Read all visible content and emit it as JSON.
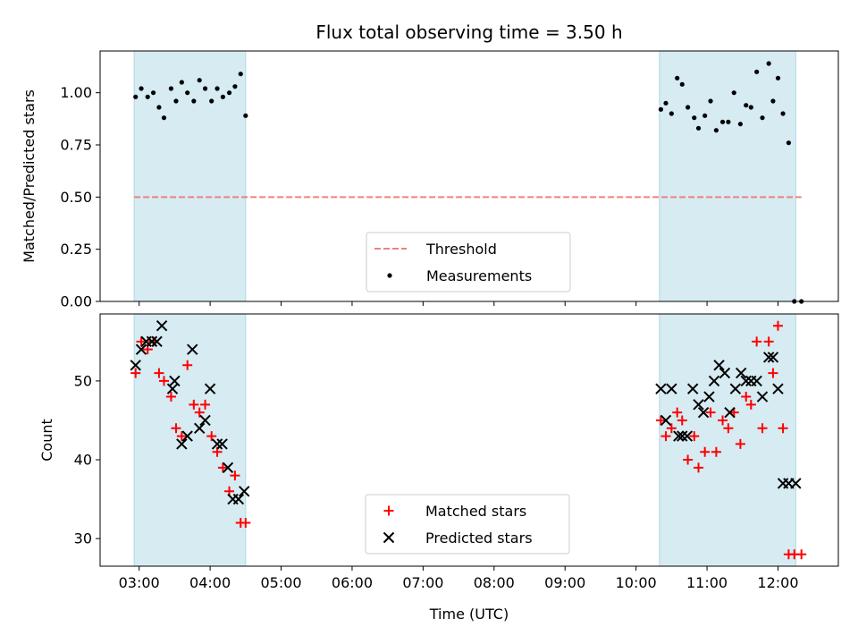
{
  "chart_data": {
    "title": "Flux total observing time = 3.50 h",
    "xlabel": "Time (UTC)",
    "xticks": [
      "03:00",
      "04:00",
      "05:00",
      "06:00",
      "07:00",
      "08:00",
      "09:00",
      "10:00",
      "11:00",
      "12:00"
    ],
    "xlim_hours": [
      2.45,
      12.85
    ],
    "shaded_intervals_hours": [
      [
        2.93,
        4.5
      ],
      [
        10.33,
        12.25
      ]
    ],
    "shade_color": "#add8e6",
    "panels": [
      {
        "type": "scatter",
        "ylabel": "Matched/Predicted stars",
        "ylim": [
          0,
          1.2
        ],
        "yticks": [
          "0.00",
          "0.25",
          "0.50",
          "0.75",
          "1.00"
        ],
        "threshold": {
          "name": "Threshold",
          "value": 0.5,
          "color": "#f08080"
        },
        "legend": [
          "Threshold",
          "Measurements"
        ],
        "series": [
          {
            "name": "Measurements",
            "marker": "dot",
            "color": "#000000",
            "x": [
              2.95,
              3.03,
              3.12,
              3.2,
              3.28,
              3.35,
              3.45,
              3.52,
              3.6,
              3.68,
              3.77,
              3.85,
              3.93,
              4.02,
              4.1,
              4.18,
              4.27,
              4.35,
              4.43,
              4.5,
              10.35,
              10.42,
              10.5,
              10.58,
              10.65,
              10.73,
              10.82,
              10.88,
              10.97,
              11.05,
              11.13,
              11.22,
              11.3,
              11.38,
              11.47,
              11.55,
              11.62,
              11.7,
              11.78,
              11.87,
              11.93,
              12.0,
              12.07,
              12.15,
              12.23,
              12.33
            ],
            "y": [
              0.98,
              1.02,
              0.98,
              1.0,
              0.93,
              0.88,
              1.02,
              0.96,
              1.05,
              1.0,
              0.96,
              1.06,
              1.02,
              0.96,
              1.02,
              0.98,
              1.0,
              1.03,
              1.09,
              0.89,
              0.92,
              0.95,
              0.9,
              1.07,
              1.04,
              0.93,
              0.88,
              0.83,
              0.89,
              0.96,
              0.82,
              0.86,
              0.86,
              1.0,
              0.85,
              0.94,
              0.93,
              1.1,
              0.88,
              1.14,
              0.96,
              1.07,
              0.9,
              0.76,
              0.0,
              0.0
            ]
          }
        ]
      },
      {
        "type": "scatter",
        "ylabel": "Count",
        "ylim": [
          26.5,
          58.5
        ],
        "yticks": [
          "30",
          "40",
          "50"
        ],
        "legend": [
          "Matched stars",
          "Predicted stars"
        ],
        "series": [
          {
            "name": "Matched stars",
            "marker": "plus",
            "color": "#ff0000",
            "x": [
              2.95,
              3.03,
              3.12,
              3.2,
              3.28,
              3.35,
              3.45,
              3.52,
              3.6,
              3.68,
              3.77,
              3.85,
              3.93,
              4.02,
              4.1,
              4.18,
              4.27,
              4.35,
              4.43,
              4.5,
              10.35,
              10.42,
              10.5,
              10.58,
              10.65,
              10.73,
              10.82,
              10.88,
              10.97,
              11.05,
              11.13,
              11.22,
              11.3,
              11.38,
              11.47,
              11.55,
              11.62,
              11.7,
              11.78,
              11.87,
              11.93,
              12.0,
              12.07,
              12.15,
              12.23,
              12.33
            ],
            "y": [
              51,
              55,
              54,
              55,
              51,
              50,
              48,
              44,
              43,
              52,
              47,
              46,
              47,
              43,
              41,
              39,
              36,
              38,
              32,
              32,
              45,
              43,
              44,
              46,
              45,
              40,
              43,
              39,
              41,
              46,
              41,
              45,
              44,
              46,
              42,
              48,
              47,
              55,
              44,
              55,
              51,
              57,
              44,
              28,
              28,
              28
            ],
            "x_overrides": {}
          },
          {
            "name": "Predicted stars",
            "marker": "x",
            "color": "#000000",
            "x": [
              2.95,
              3.03,
              3.1,
              3.18,
              3.25,
              3.32,
              3.47,
              3.5,
              3.6,
              3.68,
              3.75,
              3.85,
              3.93,
              4.0,
              4.1,
              4.17,
              4.25,
              4.32,
              4.4,
              4.48,
              10.35,
              10.42,
              10.5,
              10.6,
              10.65,
              10.72,
              10.8,
              10.88,
              10.95,
              11.03,
              11.1,
              11.17,
              11.25,
              11.32,
              11.4,
              11.48,
              11.55,
              11.62,
              11.7,
              11.78,
              11.87,
              11.93,
              12.0,
              12.07,
              12.15,
              12.25
            ],
            "y": [
              52,
              54,
              55,
              55,
              55,
              57,
              49,
              50,
              42,
              43,
              54,
              44,
              45,
              49,
              42,
              42,
              39,
              35,
              35,
              36,
              49,
              45,
              49,
              43,
              43,
              43,
              49,
              47,
              46,
              48,
              50,
              52,
              51,
              46,
              49,
              51,
              50,
              50,
              50,
              48,
              53,
              53,
              49,
              37,
              37,
              37
            ]
          }
        ]
      }
    ]
  }
}
